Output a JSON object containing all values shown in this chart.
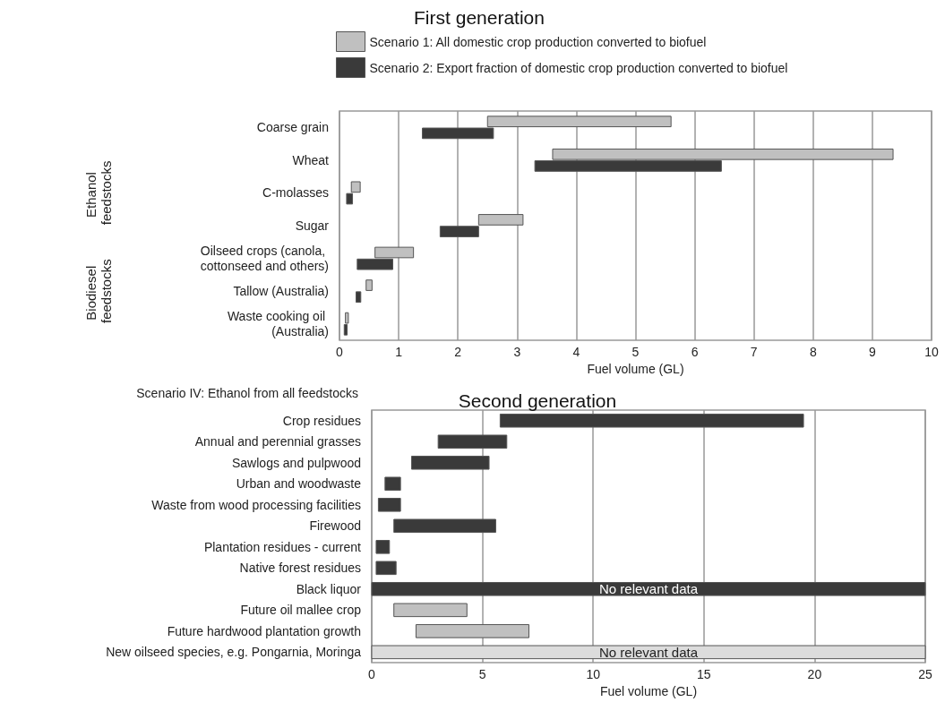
{
  "chart_data": [
    {
      "type": "bar",
      "orientation": "horizontal",
      "title": "First generation",
      "categories": [
        "Coarse grain",
        "Wheat",
        "C-molasses",
        "Sugar",
        "Oilseed crops (canola, cottonseed and others)",
        "Tallow (Australia)",
        "Waste cooking oil (Australia)"
      ],
      "series": [
        {
          "name": "Scenario 1: All domestic crop production converted to biofuel",
          "color": "#c0c0c0",
          "base": [
            2.5,
            3.6,
            0.2,
            2.35,
            0.6,
            0.45,
            0.1
          ],
          "values": [
            3.1,
            5.75,
            0.15,
            0.75,
            0.65,
            0.1,
            0.05
          ]
        },
        {
          "name": "Scenario 2: Export fraction of domestic crop production converted to biofuel",
          "color": "#3a3a3a",
          "base": [
            1.4,
            3.3,
            0.12,
            1.7,
            0.3,
            0.28,
            0.08
          ],
          "values": [
            1.2,
            3.15,
            0.1,
            0.65,
            0.6,
            0.08,
            0.05
          ]
        }
      ],
      "xlim": [
        0,
        10
      ],
      "xticks": [
        0,
        1,
        2,
        3,
        4,
        5,
        6,
        7,
        8,
        9,
        10
      ],
      "xlabel": "Fuel volume (GL)",
      "grid": "x",
      "legend": "top",
      "annotations": [
        "Ethanol feedstocks",
        "Biodiesel feedstocks"
      ]
    },
    {
      "type": "bar",
      "orientation": "horizontal",
      "title": "Second generation",
      "categories": [
        "Crop residues",
        "Annual and perennial grasses",
        "Sawlogs and pulpwood",
        "Urban and woodwaste",
        "Waste from wood processing facilities",
        "Firewood",
        "Plantation residues - current",
        "Native forest residues",
        "Black liquor",
        "Future oil mallee crop",
        "Future hardwood plantation growth",
        "New oilseed species, e.g. Pongarnia, Moringa"
      ],
      "base": [
        5.8,
        3.0,
        1.8,
        0.6,
        0.3,
        1.0,
        0.2,
        0.2,
        0,
        1.0,
        2.0,
        0
      ],
      "values": [
        13.7,
        3.1,
        3.5,
        0.7,
        1.0,
        4.6,
        0.6,
        0.9,
        25,
        3.3,
        5.1,
        25
      ],
      "colors": [
        "#3a3a3a",
        "#3a3a3a",
        "#3a3a3a",
        "#3a3a3a",
        "#3a3a3a",
        "#3a3a3a",
        "#3a3a3a",
        "#3a3a3a",
        "#3a3a3a",
        "#c0c0c0",
        "#c0c0c0",
        "#dcdcdc"
      ],
      "value_labels": [
        null,
        null,
        null,
        null,
        null,
        null,
        null,
        null,
        "No relevant data",
        null,
        null,
        "No relevant data"
      ],
      "xlim": [
        0,
        25
      ],
      "xticks": [
        0,
        5,
        10,
        15,
        20,
        25
      ],
      "xlabel": "Fuel volume (GL)",
      "grid": "x",
      "annotations": [
        "Scenario IV: Ethanol from all feedstocks"
      ]
    }
  ]
}
